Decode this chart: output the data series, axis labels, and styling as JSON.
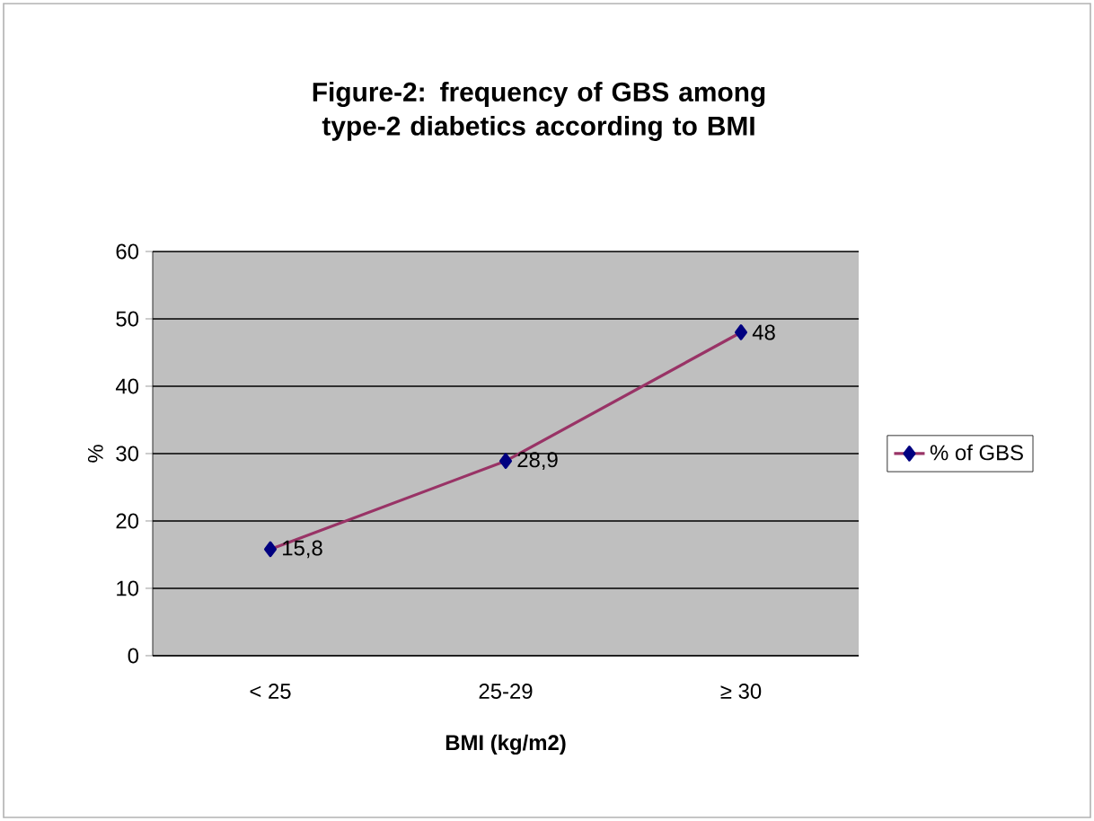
{
  "chart_data": {
    "type": "line",
    "title": "Figure-2: frequency of GBS among type-2 diabetics according to BMI",
    "xlabel": "BMI (kg/m2)",
    "ylabel": "%",
    "categories": [
      "< 25",
      "25-29",
      "≥ 30"
    ],
    "series": [
      {
        "name": "% of GBS",
        "color": "#993366",
        "values": [
          15.8,
          28.9,
          48
        ],
        "value_labels": [
          "15,8",
          "28,9",
          "48"
        ]
      }
    ],
    "ylim": [
      0,
      60
    ],
    "yticks": [
      0,
      10,
      20,
      30,
      40,
      50,
      60
    ],
    "grid": "y",
    "legend": "right",
    "marker": "diamond",
    "line_style": "solid"
  }
}
